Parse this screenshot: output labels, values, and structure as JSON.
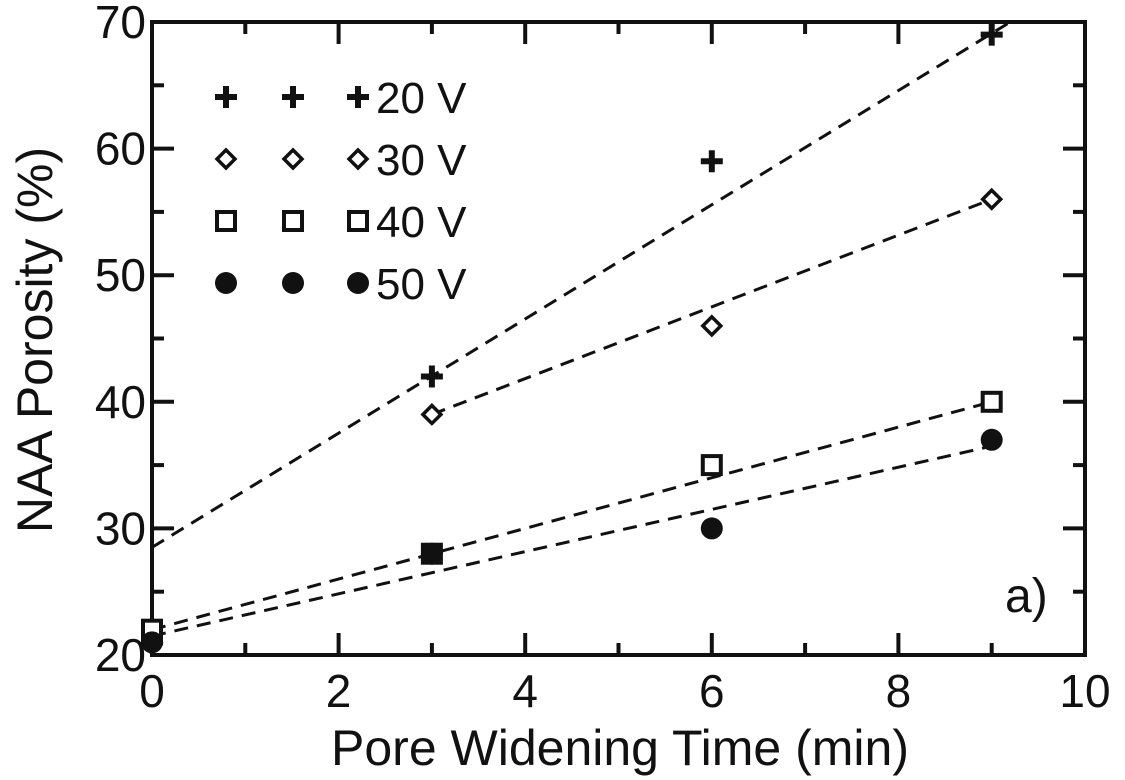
{
  "chart_data": {
    "type": "scatter",
    "title": "",
    "xlabel": "Pore Widening Time (min)",
    "ylabel": "NAA Porosity (%)",
    "xlim": [
      0,
      10
    ],
    "ylim": [
      20,
      70
    ],
    "xticks": [
      "0",
      "2",
      "4",
      "6",
      "8",
      "10"
    ],
    "yticks": [
      "20",
      "30",
      "40",
      "50",
      "60",
      "70"
    ],
    "panel_label": "a)",
    "grid": false,
    "legend_position": "top-left",
    "series": [
      {
        "name": "20 V",
        "marker": "plus",
        "x": [
          0,
          3,
          6,
          9
        ],
        "y": [
          21,
          42,
          59,
          69
        ],
        "fit": [
          [
            0,
            28.5
          ],
          [
            9.2,
            70
          ]
        ]
      },
      {
        "name": "30 V",
        "marker": "diamond-open",
        "x": [
          0,
          3,
          6,
          9
        ],
        "y": [
          21,
          39,
          46,
          56
        ],
        "fit": [
          [
            3,
            39
          ],
          [
            9,
            56
          ]
        ]
      },
      {
        "name": "40 V",
        "marker": "square-open",
        "x": [
          0,
          3,
          6,
          9
        ],
        "y": [
          22,
          28,
          35,
          40
        ],
        "fit": [
          [
            0,
            22
          ],
          [
            9,
            40
          ]
        ]
      },
      {
        "name": "50 V",
        "marker": "circle-filled",
        "x": [
          0,
          3,
          6,
          9
        ],
        "y": [
          21,
          28,
          30,
          37
        ],
        "fit": [
          [
            0,
            21.5
          ],
          [
            9,
            36.5
          ]
        ]
      }
    ]
  }
}
